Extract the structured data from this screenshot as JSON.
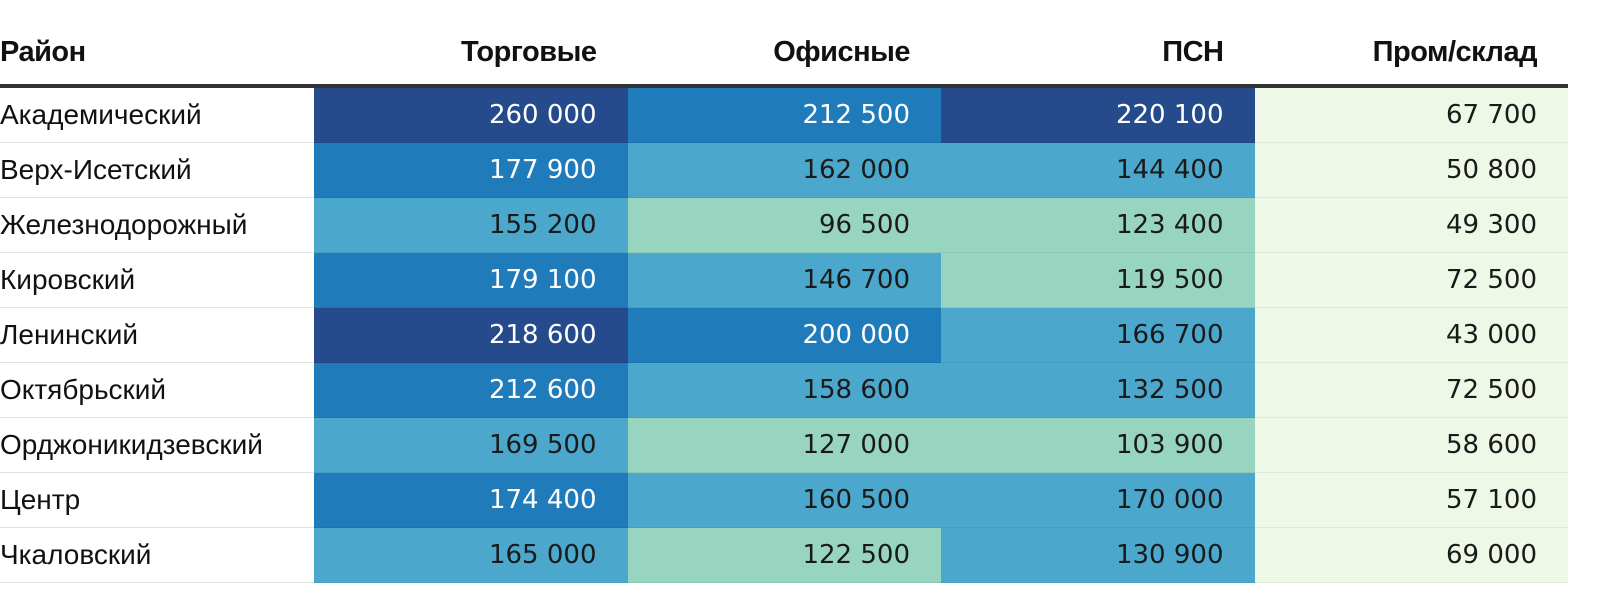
{
  "chart_data": {
    "type": "table",
    "columns": [
      "Район",
      "Торговые",
      "Офисные",
      "ПСН",
      "Пром/склад"
    ],
    "rows": [
      {
        "district": "Академический",
        "values": [
          "260 000",
          "212 500",
          "220 100",
          "67 700"
        ],
        "colors": [
          "#264b8c",
          "#1f7bba",
          "#264b8c",
          "#eef8e6"
        ]
      },
      {
        "district": "Верх-Исетский",
        "values": [
          "177 900",
          "162 000",
          "144 400",
          "50 800"
        ],
        "colors": [
          "#1f7bba",
          "#4ba8cc",
          "#4ba8cc",
          "#eef8e6"
        ]
      },
      {
        "district": "Железнодорожный",
        "values": [
          "155 200",
          "96 500",
          "123 400",
          "49 300"
        ],
        "colors": [
          "#4ba8cc",
          "#98d5c0",
          "#98d5c0",
          "#eef8e6"
        ]
      },
      {
        "district": "Кировский",
        "values": [
          "179 100",
          "146 700",
          "119 500",
          "72 500"
        ],
        "colors": [
          "#1f7bba",
          "#4ba8cc",
          "#98d5c0",
          "#eef8e6"
        ]
      },
      {
        "district": "Ленинский",
        "values": [
          "218 600",
          "200 000",
          "166 700",
          "43 000"
        ],
        "colors": [
          "#264b8c",
          "#1f7bba",
          "#4ba8cc",
          "#eef8e6"
        ]
      },
      {
        "district": "Октябрьский",
        "values": [
          "212 600",
          "158 600",
          "132 500",
          "72 500"
        ],
        "colors": [
          "#1f7bba",
          "#4ba8cc",
          "#4ba8cc",
          "#eef8e6"
        ]
      },
      {
        "district": "Орджоникидзевский",
        "values": [
          "169 500",
          "127 000",
          "103 900",
          "58 600"
        ],
        "colors": [
          "#4ba8cc",
          "#98d5c0",
          "#98d5c0",
          "#eef8e6"
        ]
      },
      {
        "district": "Центр",
        "values": [
          "174 400",
          "160 500",
          "170 000",
          "57 100"
        ],
        "colors": [
          "#1f7bba",
          "#4ba8cc",
          "#4ba8cc",
          "#eef8e6"
        ]
      },
      {
        "district": "Чкаловский",
        "values": [
          "165 000",
          "122 500",
          "130 900",
          "69 000"
        ],
        "colors": [
          "#4ba8cc",
          "#98d5c0",
          "#4ba8cc",
          "#eef8e6"
        ]
      }
    ]
  }
}
